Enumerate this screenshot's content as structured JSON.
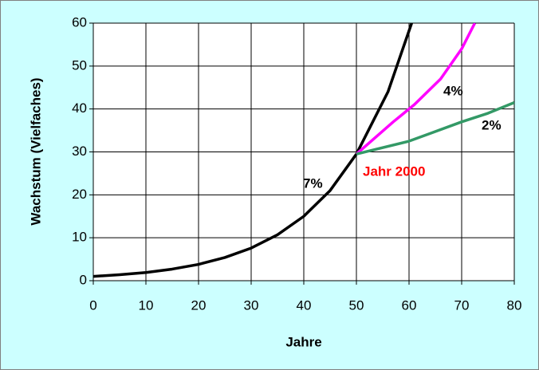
{
  "chart_data": {
    "type": "line",
    "xlabel": "Jahre",
    "ylabel": "Wachstum (Vielfaches)",
    "xlim": [
      0,
      80
    ],
    "xticks": [
      0,
      10,
      20,
      30,
      40,
      50,
      60,
      70,
      80
    ],
    "ylim": [
      0,
      60
    ],
    "yticks": [
      0,
      10,
      20,
      30,
      40,
      50,
      60
    ],
    "grid": true,
    "series": [
      {
        "name": "7%",
        "color": "#000000",
        "x": [
          0,
          5,
          10,
          15,
          20,
          25,
          30,
          35,
          40,
          45,
          50,
          56,
          60.5
        ],
        "values": [
          1,
          1.4,
          1.9,
          2.7,
          3.8,
          5.4,
          7.6,
          10.7,
          15,
          21,
          29.5,
          44,
          60
        ]
      },
      {
        "name": "4%",
        "color": "#ff00ff",
        "x": [
          50,
          57,
          61,
          66,
          70,
          72.5
        ],
        "values": [
          29.5,
          37,
          41,
          47,
          54,
          60
        ]
      },
      {
        "name": "2%",
        "color": "#339966",
        "x": [
          50,
          60,
          64,
          70,
          75,
          80
        ],
        "values": [
          29.5,
          32.5,
          34.3,
          37,
          39,
          41.5
        ]
      }
    ],
    "annotations": [
      "Jahr 2000"
    ]
  }
}
